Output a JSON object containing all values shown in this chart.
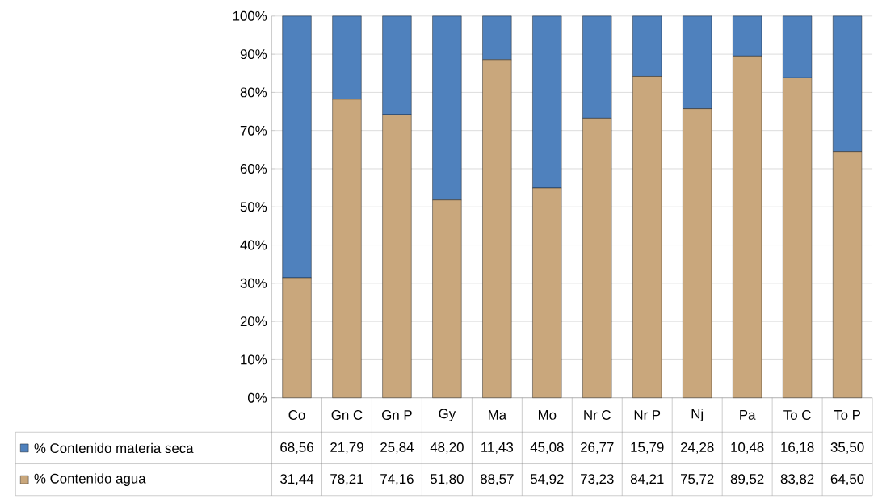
{
  "chart_data": {
    "type": "bar",
    "stacked": true,
    "categories": [
      "Co",
      "Gn C",
      "Gn P",
      "Gy",
      "Ma",
      "Mo",
      "Nr C",
      "Nr P",
      "Nj",
      "Pa",
      "To C",
      "To P"
    ],
    "series": [
      {
        "name": "% Contenido agua",
        "color": "#c9a77c",
        "values": [
          31.44,
          78.21,
          74.16,
          51.8,
          88.57,
          54.92,
          73.23,
          84.21,
          75.72,
          89.52,
          83.82,
          64.5
        ],
        "value_labels": [
          "31,44",
          "78,21",
          "74,16",
          "51,80",
          "88,57",
          "54,92",
          "73,23",
          "84,21",
          "75,72",
          "89,52",
          "83,82",
          "64,50"
        ]
      },
      {
        "name": "% Contenido materia seca",
        "color": "#4f81bd",
        "values": [
          68.56,
          21.79,
          25.84,
          48.2,
          11.43,
          45.08,
          26.77,
          15.79,
          24.28,
          10.48,
          16.18,
          35.5
        ],
        "value_labels": [
          "68,56",
          "21,79",
          "25,84",
          "48,20",
          "11,43",
          "45,08",
          "26,77",
          "15,79",
          "24,28",
          "10,48",
          "16,18",
          "35,50"
        ]
      }
    ],
    "ylim": [
      0,
      100
    ],
    "yticks": [
      {
        "value": 0,
        "label": "0%"
      },
      {
        "value": 10,
        "label": "10%"
      },
      {
        "value": 20,
        "label": "20%"
      },
      {
        "value": 30,
        "label": "30%"
      },
      {
        "value": 40,
        "label": "40%"
      },
      {
        "value": 50,
        "label": "50%"
      },
      {
        "value": 60,
        "label": "60%"
      },
      {
        "value": 70,
        "label": "70%"
      },
      {
        "value": 80,
        "label": "80%"
      },
      {
        "value": 90,
        "label": "90%"
      },
      {
        "value": 100,
        "label": "100%"
      }
    ],
    "grid": "y",
    "legend": "bottom left"
  }
}
